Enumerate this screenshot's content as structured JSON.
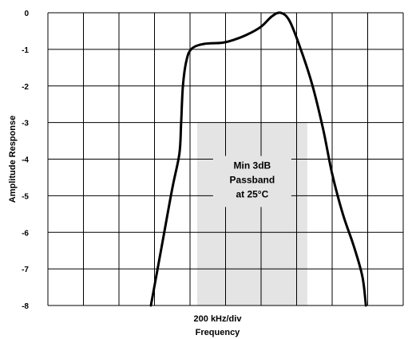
{
  "chart_data": {
    "type": "line",
    "title": "",
    "xlabel": "Frequency",
    "x_scale_label": "200 kHz/div",
    "ylabel": "Amplitude Response",
    "x_divisions": 10,
    "ylim": [
      -8,
      0
    ],
    "y_ticks": [
      "0",
      "-1",
      "-2",
      "-3",
      "-4",
      "-5",
      "-6",
      "-7",
      "-8"
    ],
    "grid": true,
    "passband": {
      "x_start_div": 4.2,
      "x_end_div": 7.3,
      "y_top": -3,
      "y_bottom": -8,
      "lines": [
        "Min 3dB",
        "Passband",
        "at 25°C"
      ],
      "fill_color": "#e4e4e4"
    },
    "series": [
      {
        "color": "#000000",
        "points": [
          [
            2.9,
            -8.0
          ],
          [
            3.2,
            -6.4
          ],
          [
            3.5,
            -4.8
          ],
          [
            3.7,
            -3.85
          ],
          [
            3.75,
            -3.0
          ],
          [
            3.8,
            -2.0
          ],
          [
            3.9,
            -1.3
          ],
          [
            4.05,
            -0.98
          ],
          [
            4.4,
            -0.85
          ],
          [
            4.9,
            -0.82
          ],
          [
            5.2,
            -0.75
          ],
          [
            5.6,
            -0.6
          ],
          [
            6.0,
            -0.38
          ],
          [
            6.3,
            -0.1
          ],
          [
            6.55,
            0.0
          ],
          [
            6.8,
            -0.22
          ],
          [
            7.1,
            -0.95
          ],
          [
            7.45,
            -2.0
          ],
          [
            7.75,
            -3.2
          ],
          [
            8.0,
            -4.4
          ],
          [
            8.3,
            -5.5
          ],
          [
            8.6,
            -6.35
          ],
          [
            8.85,
            -7.2
          ],
          [
            8.95,
            -8.0
          ]
        ]
      }
    ]
  }
}
